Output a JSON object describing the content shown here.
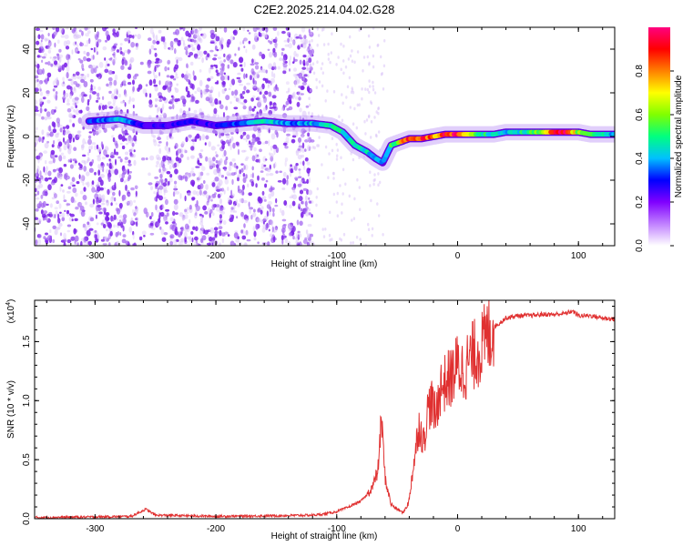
{
  "title": "C2E2.2025.214.04.02.G28",
  "colors": {
    "snr_line": "#e03030",
    "spectrogram_scatter": "#8030e0",
    "frame": "#000000"
  },
  "chart_data": [
    {
      "type": "heatmap",
      "xlabel": "Height of straight line (km)",
      "ylabel": "Frequency (Hz)",
      "xlim": [
        -350,
        130
      ],
      "ylim": [
        -50,
        50
      ],
      "x_ticks": [
        -300,
        -200,
        -100,
        0,
        100
      ],
      "y_ticks": [
        -40,
        -20,
        0,
        20,
        40
      ],
      "colorbar": {
        "label": "Normalized spectral amplitude",
        "range": [
          0.0,
          1.0
        ],
        "ticks": [
          "0.0",
          "0.2",
          "0.4",
          "0.6",
          "0.8"
        ],
        "colormap": [
          "#ffffff",
          "#c080ff",
          "#8000ff",
          "#0000ff",
          "#00c0ff",
          "#00ff80",
          "#80ff00",
          "#ffff00",
          "#ff8000",
          "#ff0000",
          "#ff0080"
        ]
      },
      "ridge": {
        "height_km": [
          -305,
          -280,
          -260,
          -240,
          -220,
          -200,
          -180,
          -160,
          -140,
          -120,
          -105,
          -95,
          -85,
          -75,
          -68,
          -62,
          -55,
          -50,
          -45,
          -40,
          -35,
          -30,
          -20,
          -10,
          0,
          10,
          20,
          30,
          40,
          50,
          60,
          70,
          80,
          90,
          100,
          110,
          120,
          130
        ],
        "frequency_hz": [
          7,
          8,
          5,
          5,
          7,
          5,
          6,
          7,
          6,
          6,
          5,
          2,
          -4,
          -7,
          -10,
          -12,
          -4,
          -3,
          -2,
          -1,
          -1,
          -1,
          0,
          1,
          1,
          1,
          1,
          1,
          2,
          2,
          2,
          2,
          2,
          2,
          2,
          1,
          1,
          1
        ],
        "amplitude": [
          0.3,
          0.4,
          0.25,
          0.25,
          0.3,
          0.25,
          0.35,
          0.45,
          0.35,
          0.4,
          0.45,
          0.45,
          0.45,
          0.45,
          0.4,
          0.35,
          0.5,
          0.6,
          0.75,
          0.85,
          0.8,
          0.85,
          0.8,
          0.9,
          0.9,
          0.6,
          0.5,
          0.45,
          0.4,
          0.45,
          0.5,
          0.6,
          0.9,
          0.95,
          0.6,
          0.5,
          0.45,
          0.4
        ]
      }
    },
    {
      "type": "line",
      "xlabel": "Height of straight line (km)",
      "ylabel": "SNR (10 * v/v)",
      "y_scale_label": "(x10",
      "y_scale_exponent": "4",
      "xlim": [
        -350,
        130
      ],
      "ylim": [
        0,
        1.85
      ],
      "x_ticks": [
        -300,
        -200,
        -100,
        0,
        100
      ],
      "y_ticks": [
        "0.0",
        "0.5",
        "1.0",
        "1.5"
      ],
      "series": [
        {
          "x": [
            -350,
            -300,
            -270,
            -262,
            -258,
            -250,
            -200,
            -150,
            -120,
            -110,
            -100,
            -90,
            -80,
            -75,
            -70,
            -66,
            -63,
            -60,
            -58,
            -55,
            -50,
            -45,
            -40,
            -38,
            -35,
            -32,
            -28,
            -25,
            -22,
            -18,
            -15,
            -10,
            -5,
            0,
            5,
            10,
            15,
            20,
            25,
            30,
            35,
            40,
            50,
            60,
            70,
            80,
            90,
            95,
            100,
            110,
            120,
            130
          ],
          "y": [
            0.01,
            0.015,
            0.02,
            0.06,
            0.08,
            0.03,
            0.02,
            0.025,
            0.03,
            0.04,
            0.06,
            0.1,
            0.15,
            0.2,
            0.28,
            0.4,
            0.85,
            0.35,
            0.25,
            0.12,
            0.08,
            0.05,
            0.15,
            0.35,
            0.55,
            0.8,
            0.65,
            0.9,
            1.0,
            0.85,
            1.1,
            1.15,
            1.2,
            1.3,
            1.25,
            1.35,
            1.4,
            1.45,
            1.55,
            1.62,
            1.66,
            1.7,
            1.72,
            1.72,
            1.73,
            1.73,
            1.74,
            1.76,
            1.72,
            1.72,
            1.7,
            1.69
          ]
        }
      ]
    }
  ]
}
